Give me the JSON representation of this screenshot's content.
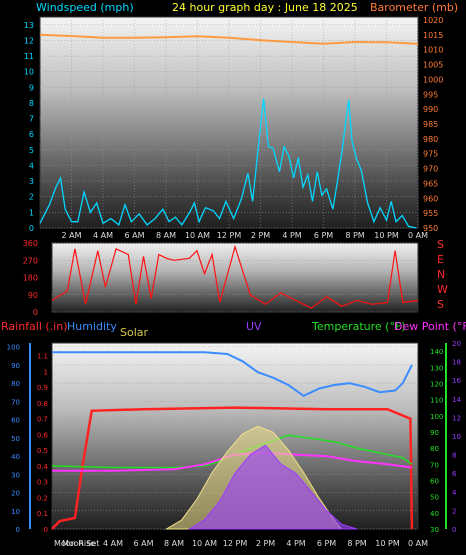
{
  "header": {
    "left": "Windspeed (mph)",
    "center": "24 hour graph day : June 18 2025",
    "right": "Barometer (mb)",
    "colors": {
      "left": "#00d8ff",
      "center": "#ffff33",
      "right": "#ff7a33"
    }
  },
  "lower_header": {
    "rainfall": "Rainfall (.in)",
    "humidity": "Humidity",
    "solar": "Solar",
    "uv": "UV",
    "temperature": "Temperature (°F)",
    "dewpoint": "Dew Point (°F)",
    "colors": {
      "rainfall": "#ff2a2a",
      "humidity": "#3a8cff",
      "solar": "#d8c84a",
      "uv": "#9a3cff",
      "temperature": "#22e022",
      "dewpoint": "#ff33ff"
    }
  },
  "moon_label": "Moon Rise",
  "sun_label": "Moon Set",
  "compass": [
    "S",
    "E",
    "N",
    "W",
    "S"
  ],
  "chart_data": [
    {
      "type": "line",
      "x_ticks": [
        "2 AM",
        "4 AM",
        "6 AM",
        "8 AM",
        "10 AM",
        "12 PM",
        "2 PM",
        "4 PM",
        "6 PM",
        "8 PM",
        "10 PM",
        "0 AM"
      ],
      "xlim": [
        0,
        24
      ],
      "y_left_ticks": [
        0,
        1,
        2,
        3,
        4,
        5,
        6,
        7,
        8,
        9,
        10,
        11,
        12,
        13
      ],
      "y_right_ticks": [
        950,
        955,
        960,
        965,
        970,
        975,
        980,
        985,
        990,
        995,
        1000,
        1005,
        1010,
        1015,
        1020
      ],
      "ylim_left": [
        0,
        13.5
      ],
      "ylim_right": [
        950,
        1021
      ],
      "grid": true,
      "series": [
        {
          "name": "Windspeed (mph)",
          "axis": "left",
          "color": "#00d8ff",
          "points": [
            [
              0,
              0.3
            ],
            [
              0.6,
              1.5
            ],
            [
              1,
              2.6
            ],
            [
              1.3,
              3.2
            ],
            [
              1.6,
              1.2
            ],
            [
              2,
              0.4
            ],
            [
              2.4,
              0.4
            ],
            [
              2.8,
              2.3
            ],
            [
              3.2,
              1
            ],
            [
              3.6,
              1.6
            ],
            [
              4,
              0.3
            ],
            [
              4.5,
              0.6
            ],
            [
              5,
              0.2
            ],
            [
              5.4,
              1.5
            ],
            [
              5.8,
              0.4
            ],
            [
              6.3,
              0.9
            ],
            [
              6.8,
              0.2
            ],
            [
              7.3,
              0.6
            ],
            [
              7.8,
              1.2
            ],
            [
              8.2,
              0.4
            ],
            [
              8.6,
              0.7
            ],
            [
              9,
              0.2
            ],
            [
              9.5,
              1
            ],
            [
              9.8,
              1.6
            ],
            [
              10.1,
              0.4
            ],
            [
              10.5,
              1.3
            ],
            [
              11,
              1.1
            ],
            [
              11.4,
              0.6
            ],
            [
              11.8,
              1.7
            ],
            [
              12.3,
              0.6
            ],
            [
              12.8,
              1.9
            ],
            [
              13.2,
              3.5
            ],
            [
              13.5,
              1.7
            ],
            [
              13.8,
              4.6
            ],
            [
              14,
              6.5
            ],
            [
              14.2,
              8.3
            ],
            [
              14.5,
              5.2
            ],
            [
              14.8,
              5.1
            ],
            [
              15.2,
              3.6
            ],
            [
              15.5,
              5.2
            ],
            [
              15.8,
              4.6
            ],
            [
              16.1,
              3.2
            ],
            [
              16.4,
              4.5
            ],
            [
              16.7,
              2.6
            ],
            [
              17,
              3.4
            ],
            [
              17.3,
              1.7
            ],
            [
              17.6,
              3.6
            ],
            [
              17.9,
              2.1
            ],
            [
              18.2,
              2.5
            ],
            [
              18.6,
              1.2
            ],
            [
              18.9,
              3.1
            ],
            [
              19.2,
              5.1
            ],
            [
              19.4,
              6.7
            ],
            [
              19.6,
              8.2
            ],
            [
              19.8,
              5.6
            ],
            [
              20.1,
              4.4
            ],
            [
              20.4,
              3.7
            ],
            [
              20.8,
              1.6
            ],
            [
              21.2,
              0.4
            ],
            [
              21.6,
              1.3
            ],
            [
              22,
              0.5
            ],
            [
              22.3,
              1.7
            ],
            [
              22.6,
              0.4
            ],
            [
              23,
              0.8
            ],
            [
              23.4,
              0.1
            ],
            [
              23.9,
              0
            ]
          ]
        },
        {
          "name": "Barometer (mb)",
          "axis": "right",
          "color": "#ff9a44",
          "points": [
            [
              0,
              1015
            ],
            [
              2,
              1014.6
            ],
            [
              4,
              1014
            ],
            [
              6,
              1014
            ],
            [
              8,
              1014.2
            ],
            [
              10,
              1014.5
            ],
            [
              12,
              1014
            ],
            [
              14,
              1013.2
            ],
            [
              16,
              1012.6
            ],
            [
              18,
              1012
            ],
            [
              20,
              1012.6
            ],
            [
              22,
              1012.5
            ],
            [
              24,
              1012
            ]
          ]
        }
      ]
    },
    {
      "type": "line",
      "name": "Wind direction",
      "y_ticks": [
        0,
        90,
        180,
        270,
        360
      ],
      "ylim": [
        0,
        360
      ],
      "xlim": [
        0,
        24
      ],
      "color": "#ff1111",
      "points": [
        [
          0,
          60
        ],
        [
          1,
          110
        ],
        [
          1.5,
          330
        ],
        [
          2.2,
          40
        ],
        [
          3,
          320
        ],
        [
          3.5,
          130
        ],
        [
          4.2,
          330
        ],
        [
          5,
          300
        ],
        [
          5.5,
          40
        ],
        [
          6,
          290
        ],
        [
          6.5,
          70
        ],
        [
          7,
          300
        ],
        [
          7.5,
          280
        ],
        [
          8,
          270
        ],
        [
          9,
          280
        ],
        [
          9.5,
          320
        ],
        [
          10,
          200
        ],
        [
          10.5,
          300
        ],
        [
          11,
          50
        ],
        [
          12,
          340
        ],
        [
          13,
          90
        ],
        [
          14,
          40
        ],
        [
          15,
          100
        ],
        [
          16,
          60
        ],
        [
          17,
          20
        ],
        [
          18,
          80
        ],
        [
          19,
          30
        ],
        [
          20,
          60
        ],
        [
          21,
          40
        ],
        [
          22,
          50
        ],
        [
          22.5,
          320
        ],
        [
          23,
          50
        ],
        [
          24,
          60
        ]
      ]
    },
    {
      "type": "line",
      "x_ticks": [
        "4 AM",
        "6 AM",
        "8 AM",
        "10 AM",
        "12 PM",
        "2 PM",
        "4 PM",
        "6 PM",
        "8 PM",
        "10 PM",
        "0 AM"
      ],
      "xlim": [
        0,
        24
      ],
      "y_rain_ticks": [
        0,
        0.1,
        0.2,
        0.3,
        0.4,
        0.5,
        0.6,
        0.7,
        0.8,
        0.9,
        1,
        1.1
      ],
      "y_humidity_ticks": [
        0,
        10,
        20,
        30,
        40,
        50,
        60,
        70,
        80,
        90,
        100
      ],
      "y_temp_ticks": [
        30,
        40,
        50,
        60,
        70,
        80,
        90,
        100,
        110,
        120,
        130,
        140
      ],
      "y_uv_ticks": [
        0,
        2,
        4,
        6,
        8,
        10,
        12,
        14,
        16,
        18,
        20
      ],
      "series": [
        {
          "name": "Rainfall (.in)",
          "color": "#ff2222",
          "points": [
            [
              0,
              0
            ],
            [
              0.5,
              0.05
            ],
            [
              1.5,
              0.07
            ],
            [
              2,
              0.4
            ],
            [
              2.6,
              0.75
            ],
            [
              6,
              0.76
            ],
            [
              12,
              0.77
            ],
            [
              18,
              0.76
            ],
            [
              22,
              0.76
            ],
            [
              23.5,
              0.7
            ],
            [
              23.6,
              0
            ]
          ]
        },
        {
          "name": "Humidity",
          "color": "#3a8cff",
          "points": [
            [
              0,
              97
            ],
            [
              4,
              97
            ],
            [
              8,
              97
            ],
            [
              10,
              97
            ],
            [
              11.5,
              96
            ],
            [
              12.5,
              92
            ],
            [
              13.5,
              86
            ],
            [
              14.5,
              83
            ],
            [
              15.5,
              79
            ],
            [
              16.5,
              73
            ],
            [
              17.5,
              77
            ],
            [
              18.5,
              79
            ],
            [
              19.5,
              80
            ],
            [
              20.5,
              78
            ],
            [
              21.5,
              75
            ],
            [
              22.5,
              76
            ],
            [
              23,
              80
            ],
            [
              23.6,
              90
            ]
          ]
        },
        {
          "name": "Temperature (°F)",
          "color": "#22e022",
          "points": [
            [
              0,
              69
            ],
            [
              4,
              68
            ],
            [
              8,
              68
            ],
            [
              10,
              69
            ],
            [
              11,
              72
            ],
            [
              12.5,
              78
            ],
            [
              14,
              83
            ],
            [
              15.5,
              88
            ],
            [
              17,
              86
            ],
            [
              18.5,
              84
            ],
            [
              20,
              80
            ],
            [
              21.5,
              77
            ],
            [
              23,
              74
            ],
            [
              23.6,
              70
            ]
          ]
        },
        {
          "name": "Dew Point (°F)",
          "color": "#ff33ff",
          "points": [
            [
              0,
              66
            ],
            [
              4,
              66
            ],
            [
              8,
              67
            ],
            [
              10,
              70
            ],
            [
              12,
              76
            ],
            [
              14,
              77
            ],
            [
              16,
              76
            ],
            [
              18,
              75
            ],
            [
              20,
              72
            ],
            [
              22,
              70
            ],
            [
              23.6,
              68
            ]
          ]
        },
        {
          "name": "Solar",
          "color": "#f0e08a",
          "points": [
            [
              7.5,
              0
            ],
            [
              8.5,
              60
            ],
            [
              9.5,
              200
            ],
            [
              10.5,
              380
            ],
            [
              11.5,
              520
            ],
            [
              12.5,
              640
            ],
            [
              13.5,
              690
            ],
            [
              14.5,
              650
            ],
            [
              15.5,
              530
            ],
            [
              16.5,
              380
            ],
            [
              17.5,
              210
            ],
            [
              18.5,
              60
            ],
            [
              19,
              0
            ]
          ]
        },
        {
          "name": "UV",
          "color": "#9a3cff",
          "points": [
            [
              9,
              0
            ],
            [
              10,
              1
            ],
            [
              11,
              3
            ],
            [
              12,
              6
            ],
            [
              13,
              8
            ],
            [
              14,
              9
            ],
            [
              15,
              7
            ],
            [
              16,
              6
            ],
            [
              17,
              4
            ],
            [
              18,
              2
            ],
            [
              19,
              0.5
            ],
            [
              20,
              0
            ]
          ]
        }
      ]
    }
  ]
}
